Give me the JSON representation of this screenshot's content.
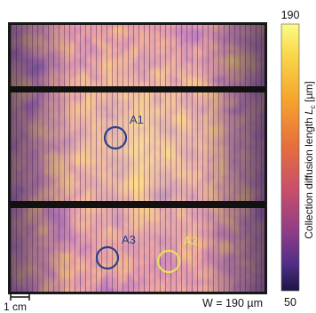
{
  "colorbar": {
    "max_label": "190",
    "min_label": "50",
    "title_main": "Collection diffusion length ",
    "title_symbol": "L",
    "title_subscript": "c",
    "title_unit": " [µm]",
    "colors": [
      "#fbfb8a",
      "#f9c23c",
      "#f59a2b",
      "#e8703c",
      "#c84f6a",
      "#8e3d86",
      "#512e85",
      "#1d1446"
    ]
  },
  "markers": [
    {
      "label": "A1",
      "color": "#2a3f8f"
    },
    {
      "label": "A2",
      "color": "#e8e25a"
    },
    {
      "label": "A3",
      "color": "#2a3f8f"
    }
  ],
  "scale_bar": {
    "label": "1 cm"
  },
  "annotation": "W = 190 µm"
}
